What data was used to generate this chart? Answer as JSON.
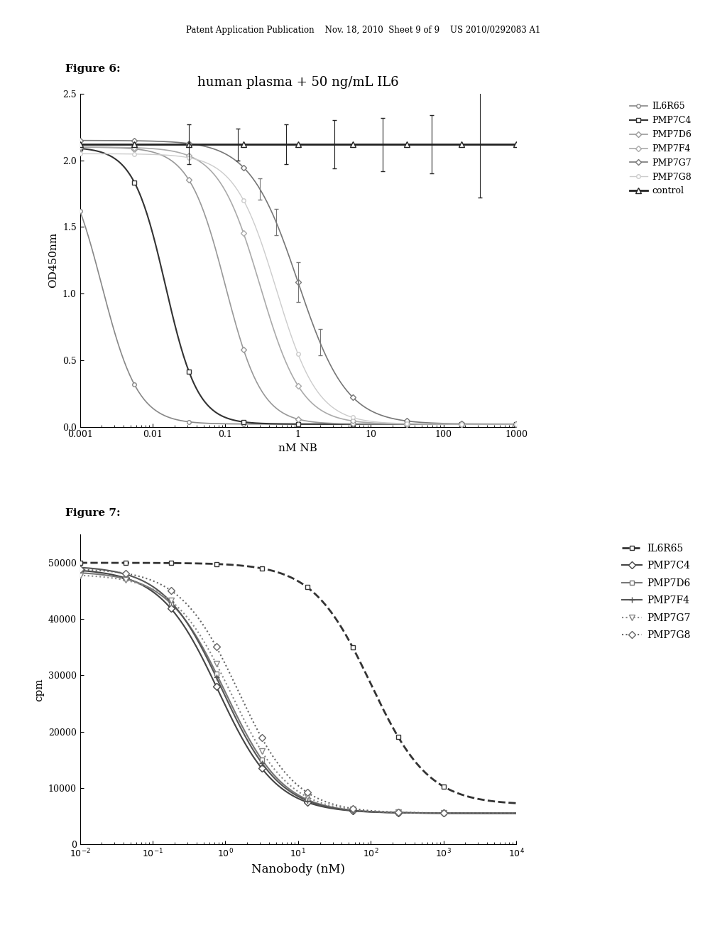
{
  "fig6_title": "human plasma + 50 ng/mL IL6",
  "fig6_xlabel": "nM NB",
  "fig6_ylabel": "OD450nm",
  "fig6_ylim": [
    0.0,
    2.5
  ],
  "fig7_xlabel": "Nanobody (nM)",
  "fig7_ylabel": "cpm",
  "fig7_ylim": [
    0,
    55000
  ],
  "header_text": "Patent Application Publication    Nov. 18, 2010  Sheet 9 of 9    US 2010/0292083 A1",
  "fig6_label": "Figure 6:",
  "fig7_label": "Figure 7:",
  "series_names_fig6": [
    "IL6R65",
    "PMP7C4",
    "PMP7D6",
    "PMP7F4",
    "PMP7G7",
    "PMP7G8",
    "control"
  ],
  "series_names_fig7": [
    "IL6R65",
    "PMP7C4",
    "PMP7D6",
    "PMP7F4",
    "PMP7G7",
    "PMP7G8"
  ],
  "fig6_x0": [
    0.002,
    0.015,
    0.1,
    0.3,
    1.0,
    0.5,
    999.0
  ],
  "fig6_k": [
    4.0,
    4.5,
    4.0,
    3.5,
    3.0,
    3.5,
    3.0
  ],
  "fig6_top": [
    2.1,
    2.1,
    2.1,
    2.1,
    2.15,
    2.05,
    2.12
  ],
  "fig6_bot": [
    0.02,
    0.02,
    0.02,
    0.02,
    0.02,
    0.02,
    2.12
  ],
  "fig6_colors": [
    "#888888",
    "#333333",
    "#999999",
    "#aaaaaa",
    "#777777",
    "#cccccc",
    "#222222"
  ],
  "fig6_markers": [
    "o",
    "s",
    "D",
    "D",
    "D",
    "o",
    "^"
  ],
  "fig6_markersizes": [
    4,
    4,
    4,
    4,
    4,
    4,
    6
  ],
  "fig6_linewidths": [
    1.2,
    1.5,
    1.2,
    1.2,
    1.2,
    1.0,
    2.0
  ],
  "fig7_x0": [
    100.0,
    0.8,
    1.0,
    0.9,
    1.2,
    1.5
  ],
  "fig7_k": [
    2.5,
    2.5,
    2.5,
    2.5,
    2.5,
    2.5
  ],
  "fig7_top": [
    50000,
    49000,
    48500,
    49500,
    48000,
    49000
  ],
  "fig7_bot": [
    7000,
    5500,
    5500,
    5500,
    5500,
    5500
  ],
  "fig7_colors": [
    "#333333",
    "#444444",
    "#777777",
    "#555555",
    "#888888",
    "#666666"
  ],
  "fig7_markers": [
    "s",
    "D",
    "s",
    "+",
    "v",
    "D"
  ],
  "fig7_markersizes": [
    5,
    5,
    5,
    6,
    6,
    5
  ],
  "fig7_linestyles": [
    "--",
    "-",
    "-",
    "-",
    ":",
    ":"
  ],
  "fig7_linewidths": [
    2.0,
    1.5,
    1.5,
    1.5,
    1.5,
    1.5
  ]
}
